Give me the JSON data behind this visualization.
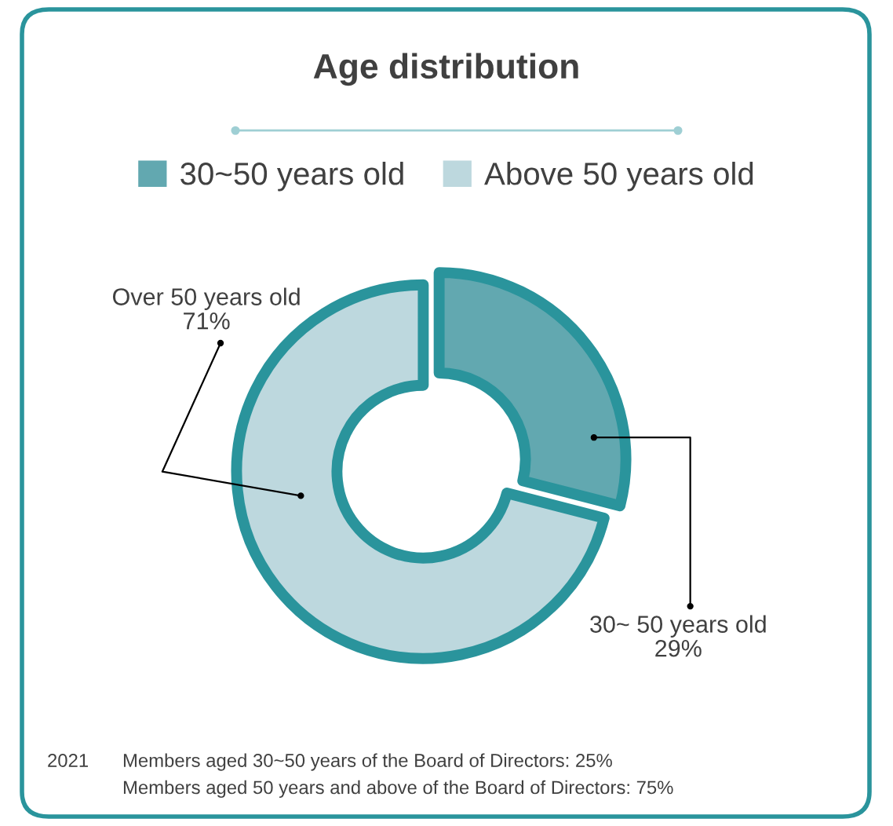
{
  "chart_data": {
    "type": "donut",
    "title": "Age distribution",
    "categories": [
      "30~50 years old",
      "Above 50 years old"
    ],
    "values": [
      29,
      71
    ],
    "colors": [
      "#62a8b0",
      "#bdd8de"
    ],
    "value_labels": [
      "30~ 50 years old\n29%",
      "Over 50 years old\n71%"
    ],
    "legend": "top",
    "annotations": [
      "2021",
      "Members aged 30~50 years of the Board of Directors: 25%\nMembers aged 50 years and above of the Board of Directors: 75%"
    ]
  }
}
